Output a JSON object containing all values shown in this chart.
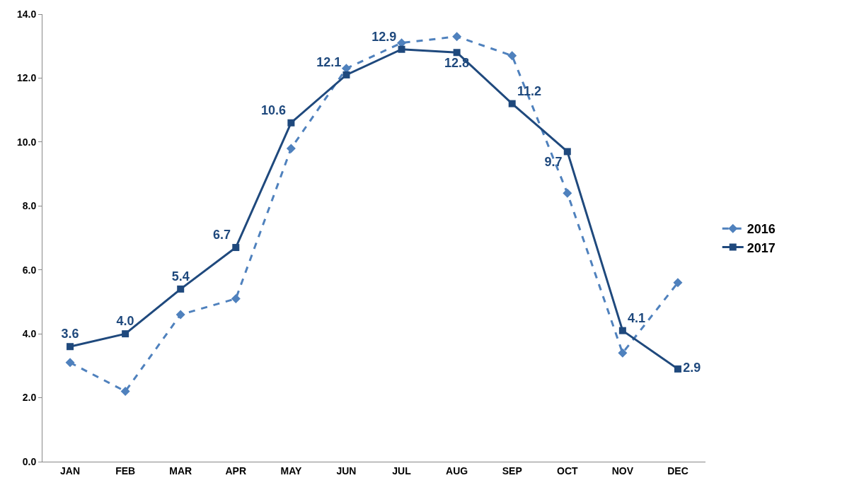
{
  "chart_data": {
    "type": "line",
    "categories": [
      "JAN",
      "FEB",
      "MAR",
      "APR",
      "MAY",
      "JUN",
      "JUL",
      "AUG",
      "SEP",
      "OCT",
      "NOV",
      "DEC"
    ],
    "series": [
      {
        "name": "2016",
        "color": "#4f81bd",
        "marker": "diamond",
        "line_style": "dashed",
        "values": [
          3.1,
          2.2,
          4.6,
          5.1,
          9.8,
          12.3,
          13.1,
          13.3,
          12.7,
          8.4,
          3.4,
          5.6
        ]
      },
      {
        "name": "2017",
        "color": "#1f497d",
        "marker": "square",
        "line_style": "solid",
        "values": [
          3.6,
          4.0,
          5.4,
          6.7,
          10.6,
          12.1,
          12.9,
          12.8,
          11.2,
          9.7,
          4.1,
          2.9
        ],
        "value_labels": [
          "3.6",
          "4.0",
          "5.4",
          "6.7",
          "10.6",
          "12.1",
          "12.9",
          "12.8",
          "11.2",
          "9.7",
          "4.1",
          "2.9"
        ]
      }
    ],
    "ylim": [
      0,
      14
    ],
    "yticks": [
      {
        "value": 0,
        "label": "0.0"
      },
      {
        "value": 2,
        "label": "2.0"
      },
      {
        "value": 4,
        "label": "4.0"
      },
      {
        "value": 6,
        "label": "6.0"
      },
      {
        "value": 8,
        "label": "8.0"
      },
      {
        "value": 10,
        "label": "10.0"
      },
      {
        "value": 12,
        "label": "12.0"
      },
      {
        "value": 14,
        "label": "14.0"
      }
    ],
    "legend": "right"
  }
}
